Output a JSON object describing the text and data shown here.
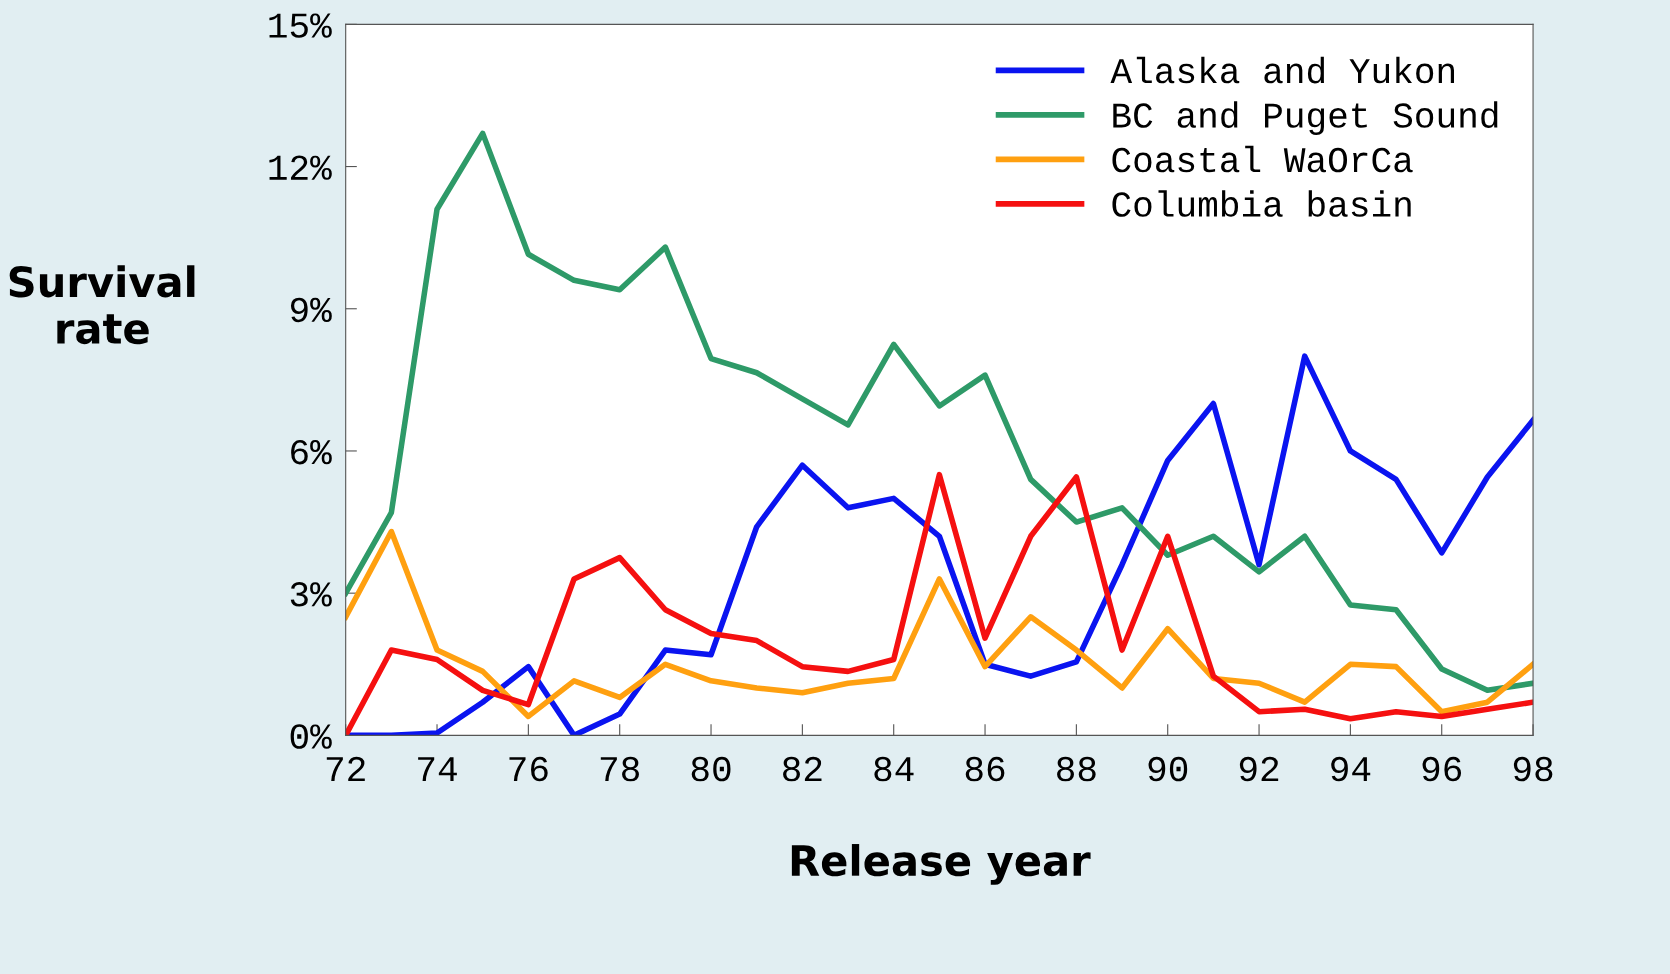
{
  "chart_data": {
    "type": "line",
    "xlabel": "Release year",
    "ylabel": "Survival\nrate",
    "x": [
      72,
      73,
      74,
      75,
      76,
      77,
      78,
      79,
      80,
      81,
      82,
      83,
      84,
      85,
      86,
      87,
      88,
      89,
      90,
      91,
      92,
      93,
      94,
      95,
      96,
      97,
      98
    ],
    "xlim": [
      72,
      98
    ],
    "xticks": [
      72,
      74,
      76,
      78,
      80,
      82,
      84,
      86,
      88,
      90,
      92,
      94,
      96,
      98
    ],
    "ylim": [
      0,
      15
    ],
    "yticks": [
      {
        "value": 0,
        "label": "0%"
      },
      {
        "value": 3,
        "label": "3%"
      },
      {
        "value": 6,
        "label": "6%"
      },
      {
        "value": 9,
        "label": "9%"
      },
      {
        "value": 12,
        "label": "12%"
      },
      {
        "value": 15,
        "label": "15%"
      }
    ],
    "series": [
      {
        "name": "Alaska and Yukon",
        "color": "#0a14f0",
        "values": [
          0,
          0,
          0.05,
          0.7,
          1.45,
          0,
          0.45,
          1.8,
          1.7,
          4.4,
          5.7,
          4.8,
          5.0,
          4.2,
          1.5,
          1.25,
          1.55,
          3.6,
          5.8,
          7.0,
          3.6,
          8.0,
          6.0,
          5.4,
          3.85,
          5.45,
          6.65
        ]
      },
      {
        "name": "BC and Puget Sound",
        "color": "#2e9a68",
        "values": [
          3.0,
          4.7,
          11.1,
          12.7,
          10.15,
          9.6,
          9.4,
          10.3,
          7.95,
          7.65,
          7.1,
          6.55,
          8.25,
          6.95,
          7.6,
          5.4,
          4.5,
          4.8,
          3.8,
          4.2,
          3.45,
          4.2,
          2.75,
          2.65,
          1.4,
          0.95,
          1.1
        ]
      },
      {
        "name": "Coastal WaOrCa",
        "color": "#ffa010",
        "values": [
          2.5,
          4.3,
          1.8,
          1.35,
          0.4,
          1.15,
          0.8,
          1.5,
          1.15,
          1.0,
          0.9,
          1.1,
          1.2,
          3.3,
          1.45,
          2.5,
          1.8,
          1.0,
          2.25,
          1.2,
          1.1,
          0.7,
          1.5,
          1.45,
          0.5,
          0.7,
          1.5
        ]
      },
      {
        "name": "Columbia basin",
        "color": "#f51010",
        "values": [
          0,
          1.8,
          1.6,
          0.95,
          0.65,
          3.3,
          3.75,
          2.65,
          2.15,
          2.0,
          1.45,
          1.35,
          1.6,
          5.5,
          2.05,
          4.2,
          5.45,
          1.8,
          4.2,
          1.25,
          0.5,
          0.55,
          0.35,
          0.5,
          0.4,
          0.55,
          0.7
        ]
      }
    ],
    "legend": "top right",
    "grid": false,
    "marker": "none",
    "line_style": "solid"
  }
}
